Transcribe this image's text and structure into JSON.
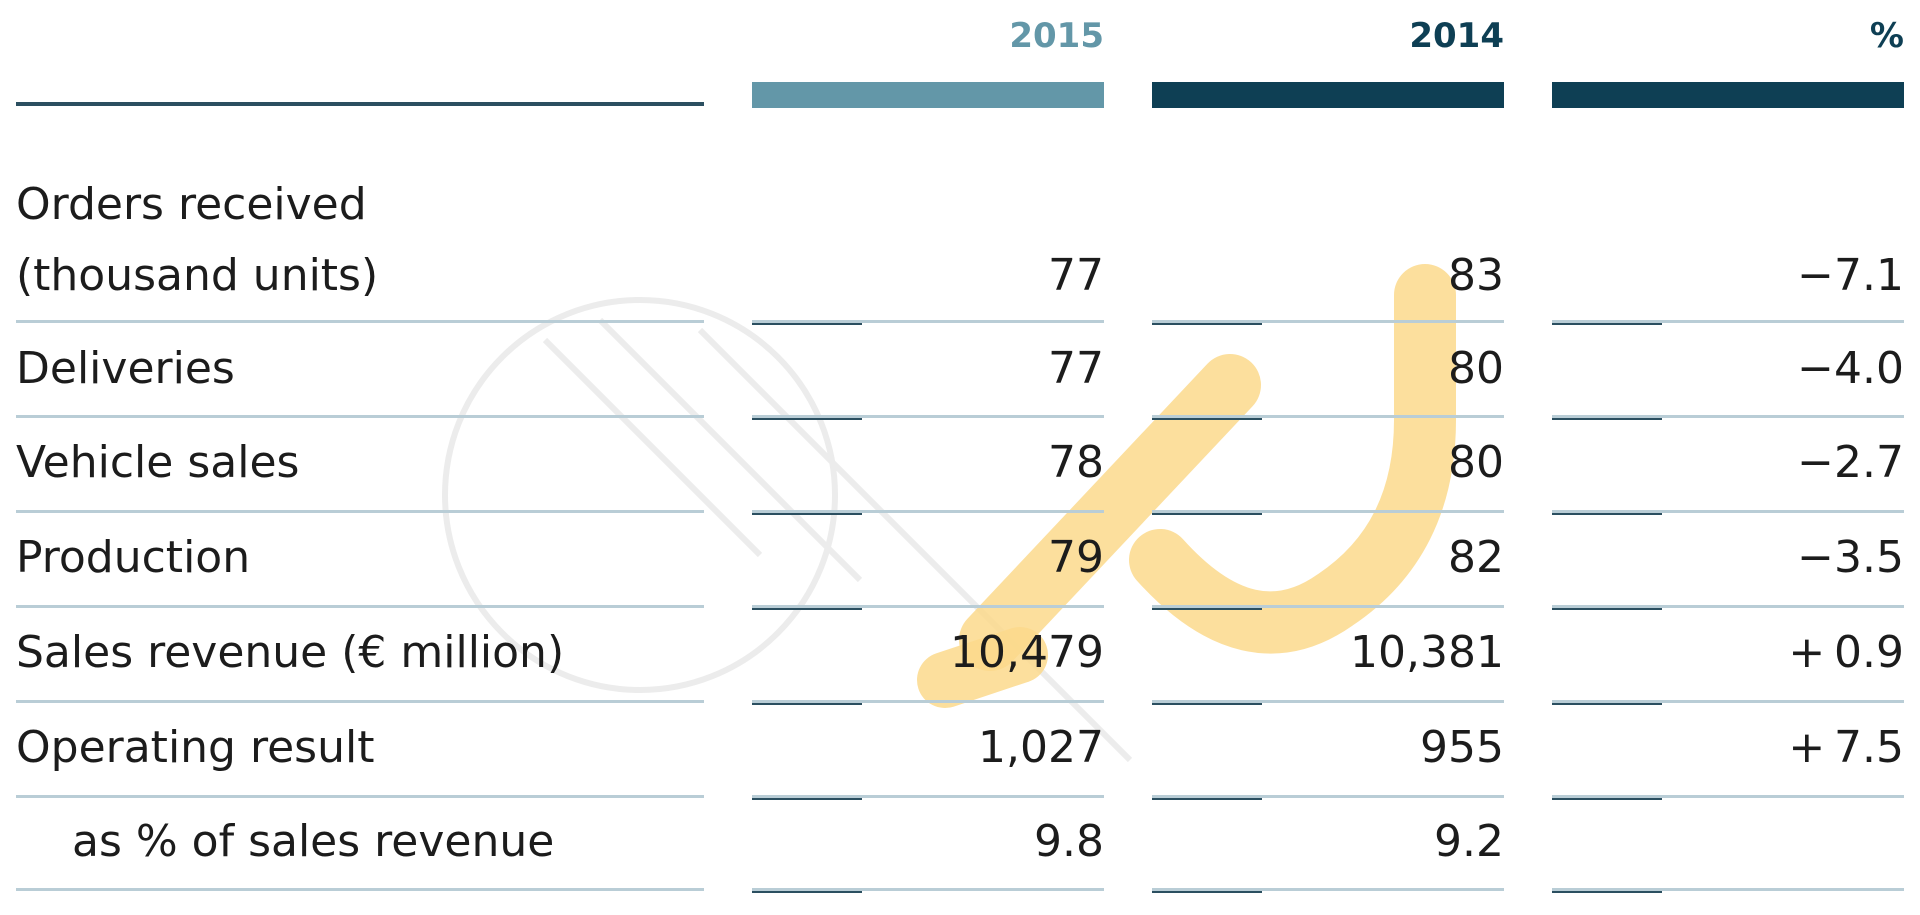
{
  "colors": {
    "col2015": "#6397a8",
    "col2014": "#0e3f54",
    "colPct": "#0e3f54",
    "rule_dark": "#2b4f60",
    "rule_light": "#b9cdd6",
    "text": "#1c1c1c",
    "watermark_accent": "#fbd98c"
  },
  "chart_data": {
    "type": "table",
    "columns": [
      "2015",
      "2014",
      "%"
    ],
    "rows": [
      {
        "label": [
          "Orders received",
          "(thousand units)"
        ],
        "values": [
          "77",
          "83",
          "−7.1"
        ],
        "indent": false
      },
      {
        "label": [
          "Deliveries"
        ],
        "values": [
          "77",
          "80",
          "−4.0"
        ],
        "indent": false
      },
      {
        "label": [
          "Vehicle sales"
        ],
        "values": [
          "78",
          "80",
          "−2.7"
        ],
        "indent": false
      },
      {
        "label": [
          "Production"
        ],
        "values": [
          "79",
          "82",
          "−3.5"
        ],
        "indent": false
      },
      {
        "label": [
          "Sales revenue (€ million)"
        ],
        "values": [
          "10,479",
          "10,381",
          "+ 0.9"
        ],
        "indent": false
      },
      {
        "label": [
          "Operating result"
        ],
        "values": [
          "1,027",
          "955",
          "+ 7.5"
        ],
        "indent": false
      },
      {
        "label": [
          "as % of sales revenue"
        ],
        "values": [
          "9.8",
          "9.2",
          ""
        ],
        "indent": true
      }
    ]
  }
}
